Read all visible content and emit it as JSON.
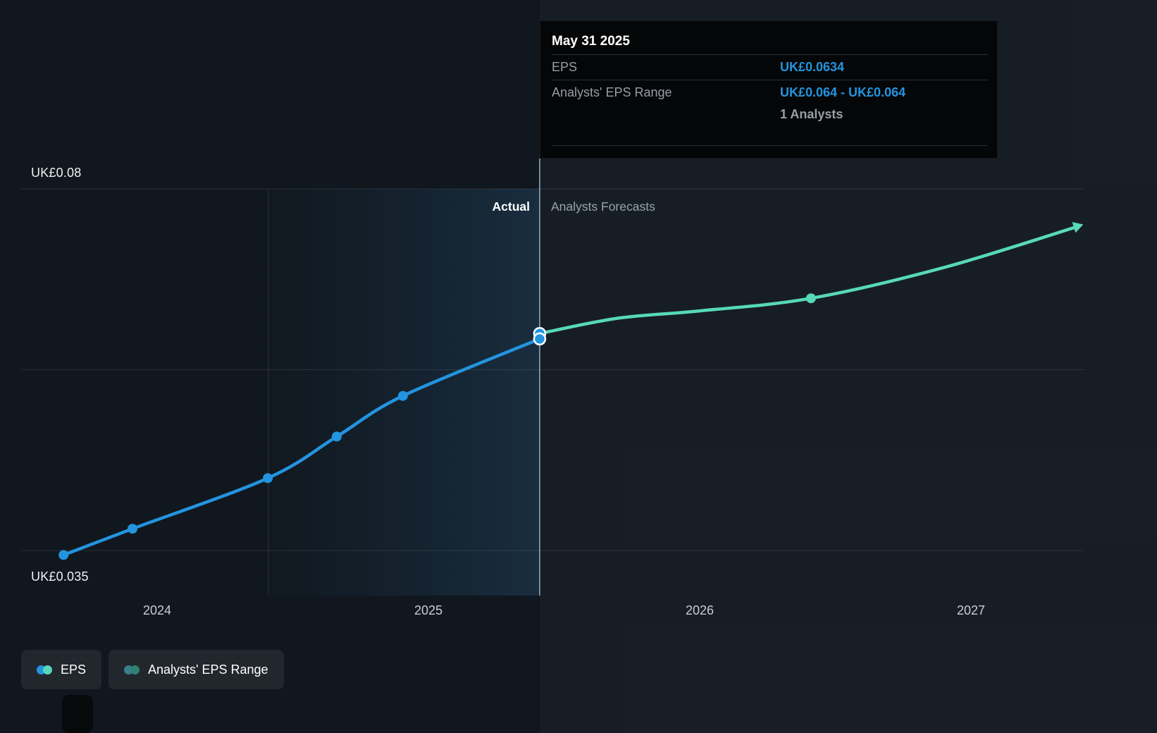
{
  "colors": {
    "actual_line": "#2394df",
    "forecast_line": "#57d9b9",
    "divider_line": "rgba(205,231,250,0.70)",
    "gridline": "rgba(255,255,255,0.10)",
    "band_from": "rgba(33,100,150,0.02)",
    "band_to": "rgba(56,134,196,0.20)",
    "band_edge": "rgba(150,195,235,0.16)"
  },
  "tooltip": {
    "date": "May 31 2025",
    "rows": [
      {
        "label": "EPS",
        "value": "UK£0.0634"
      },
      {
        "label": "Analysts' EPS Range",
        "value": "UK£0.064 - UK£0.064",
        "note": "1 Analysts"
      }
    ]
  },
  "annotations": {
    "actual": "Actual",
    "forecast": "Analysts Forecasts"
  },
  "axis": {
    "y_top_label": "UK£0.08",
    "y_bottom_label": "UK£0.035"
  },
  "legend": [
    {
      "label": "EPS",
      "dot_colors": [
        "#2394df",
        "#57d9b9"
      ]
    },
    {
      "label": "Analysts' EPS Range",
      "dot_colors": [
        "#3a7f8b",
        "#2f8273"
      ]
    }
  ],
  "chart_data": {
    "type": "line",
    "x_ticks": [
      {
        "label": "2024",
        "year": 2024
      },
      {
        "label": "2025",
        "year": 2025
      },
      {
        "label": "2026",
        "year": 2026
      },
      {
        "label": "2027",
        "year": 2027
      }
    ],
    "x_range": [
      2023.5,
      2027.47
    ],
    "y_gridline_values": [
      0.08,
      0.06,
      0.04
    ],
    "y_min": 0.035,
    "y_max": 0.0835,
    "y_axis_top_label": "UK£0.08",
    "y_axis_bottom_label": "UK£0.035",
    "divider_x": 2025.41,
    "highlight_band": {
      "start": 2024.41,
      "end": 2025.41
    },
    "series": [
      {
        "name": "EPS (Actual)",
        "color_key": "actual_line",
        "points": [
          [
            2023.655,
            0.0395
          ],
          [
            2023.909,
            0.0424
          ],
          [
            2024.408,
            0.048
          ],
          [
            2024.662,
            0.0526
          ],
          [
            2024.906,
            0.0571
          ],
          [
            2025.41,
            0.0634
          ]
        ],
        "end_marker": "ring"
      },
      {
        "name": "EPS (Analysts Forecast)",
        "color_key": "forecast_line",
        "points": [
          [
            2025.41,
            0.064
          ],
          [
            2025.7,
            0.0657
          ],
          [
            2026.0,
            0.0665
          ],
          [
            2026.41,
            0.0679
          ],
          [
            2026.9,
            0.0713
          ],
          [
            2027.4,
            0.0759
          ]
        ],
        "dot_indices": [
          3
        ],
        "end_marker": "arrow"
      }
    ],
    "analyst_range_point": {
      "x": 2025.41,
      "low": 0.064,
      "high": 0.064,
      "analysts": 1
    }
  }
}
